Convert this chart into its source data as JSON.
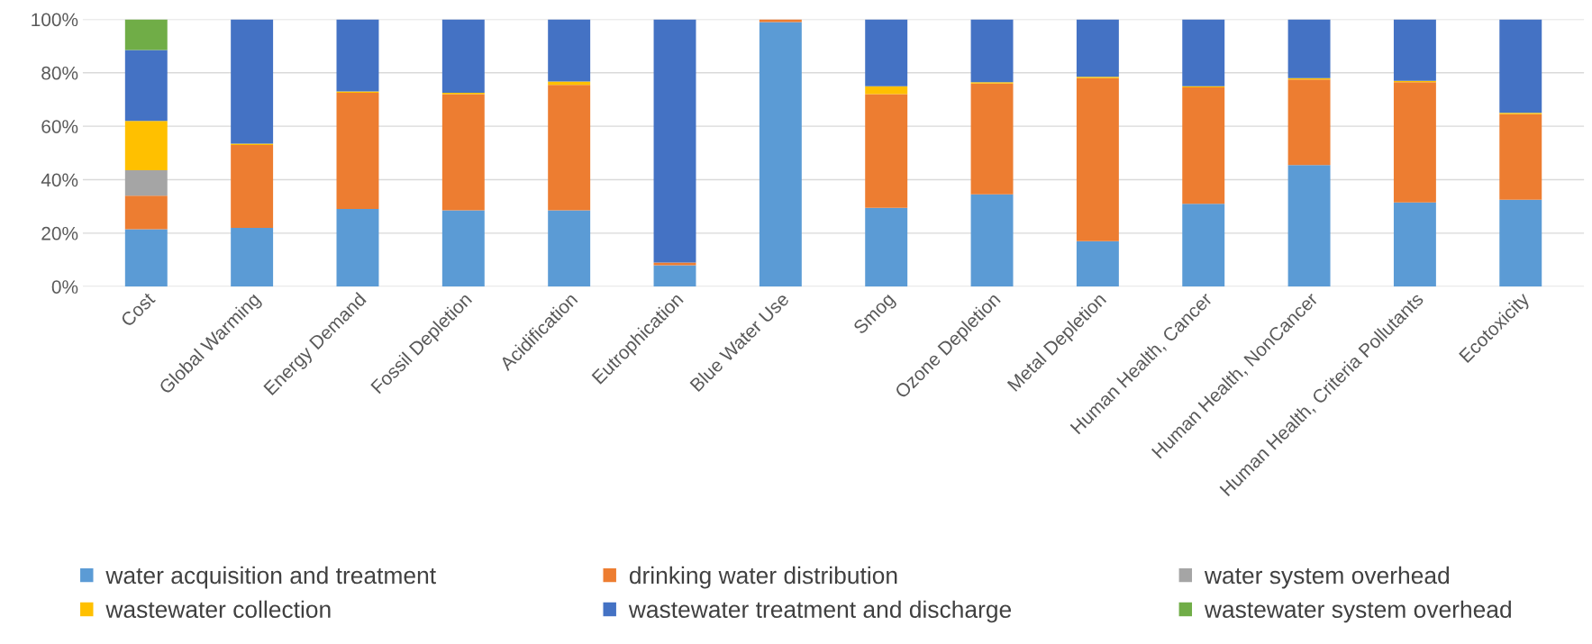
{
  "chart_data": {
    "type": "bar",
    "stacked": true,
    "categories": [
      "Cost",
      "Global Warming",
      "Energy Demand",
      "Fossil Depletion",
      "Acidification",
      "Eutrophication",
      "Blue Water Use",
      "Smog",
      "Ozone Depletion",
      "Metal Depletion",
      "Human Health, Cancer",
      "Human Health, NonCancer",
      "Human Health, Criteria Pollutants",
      "Ecotoxicity"
    ],
    "series": [
      {
        "name": "water acquisition and treatment",
        "color": "#5b9bd5",
        "values": [
          21.5,
          22,
          29,
          28.5,
          28.5,
          8,
          99,
          29.5,
          34.5,
          17,
          31,
          45.5,
          31.5,
          32.5
        ]
      },
      {
        "name": "drinking water distribution",
        "color": "#ed7d31",
        "values": [
          12.5,
          31,
          43.5,
          43.5,
          47,
          1,
          1,
          42.5,
          41.5,
          61,
          43.5,
          32,
          45,
          32
        ]
      },
      {
        "name": "water system overhead",
        "color": "#a5a5a5",
        "values": [
          9.5,
          0,
          0,
          0,
          0,
          0,
          0,
          0,
          0,
          0,
          0,
          0,
          0,
          0
        ]
      },
      {
        "name": "wastewater collection",
        "color": "#ffc000",
        "values": [
          18.5,
          0.5,
          0.5,
          0.5,
          1.2,
          0,
          0,
          3,
          0.5,
          0.5,
          0.5,
          0.5,
          0.5,
          0.5
        ]
      },
      {
        "name": "wastewater treatment and discharge",
        "color": "#4472c4",
        "values": [
          26.5,
          46.5,
          27,
          27.5,
          23.3,
          91,
          0,
          25,
          23.5,
          21.5,
          25,
          22,
          23,
          35
        ]
      },
      {
        "name": "wastewater system overhead",
        "color": "#70ad47",
        "values": [
          11.5,
          0,
          0,
          0,
          0,
          0,
          0,
          0,
          0,
          0,
          0,
          0,
          0,
          0
        ]
      }
    ],
    "ylim": [
      0,
      100
    ],
    "yticks": [
      {
        "value": 0,
        "label": "0%"
      },
      {
        "value": 20,
        "label": "20%"
      },
      {
        "value": 40,
        "label": "40%"
      },
      {
        "value": 60,
        "label": "60%"
      },
      {
        "value": 80,
        "label": "80%"
      },
      {
        "value": 100,
        "label": "100%"
      }
    ],
    "grid": "y",
    "legend": "bottom"
  }
}
